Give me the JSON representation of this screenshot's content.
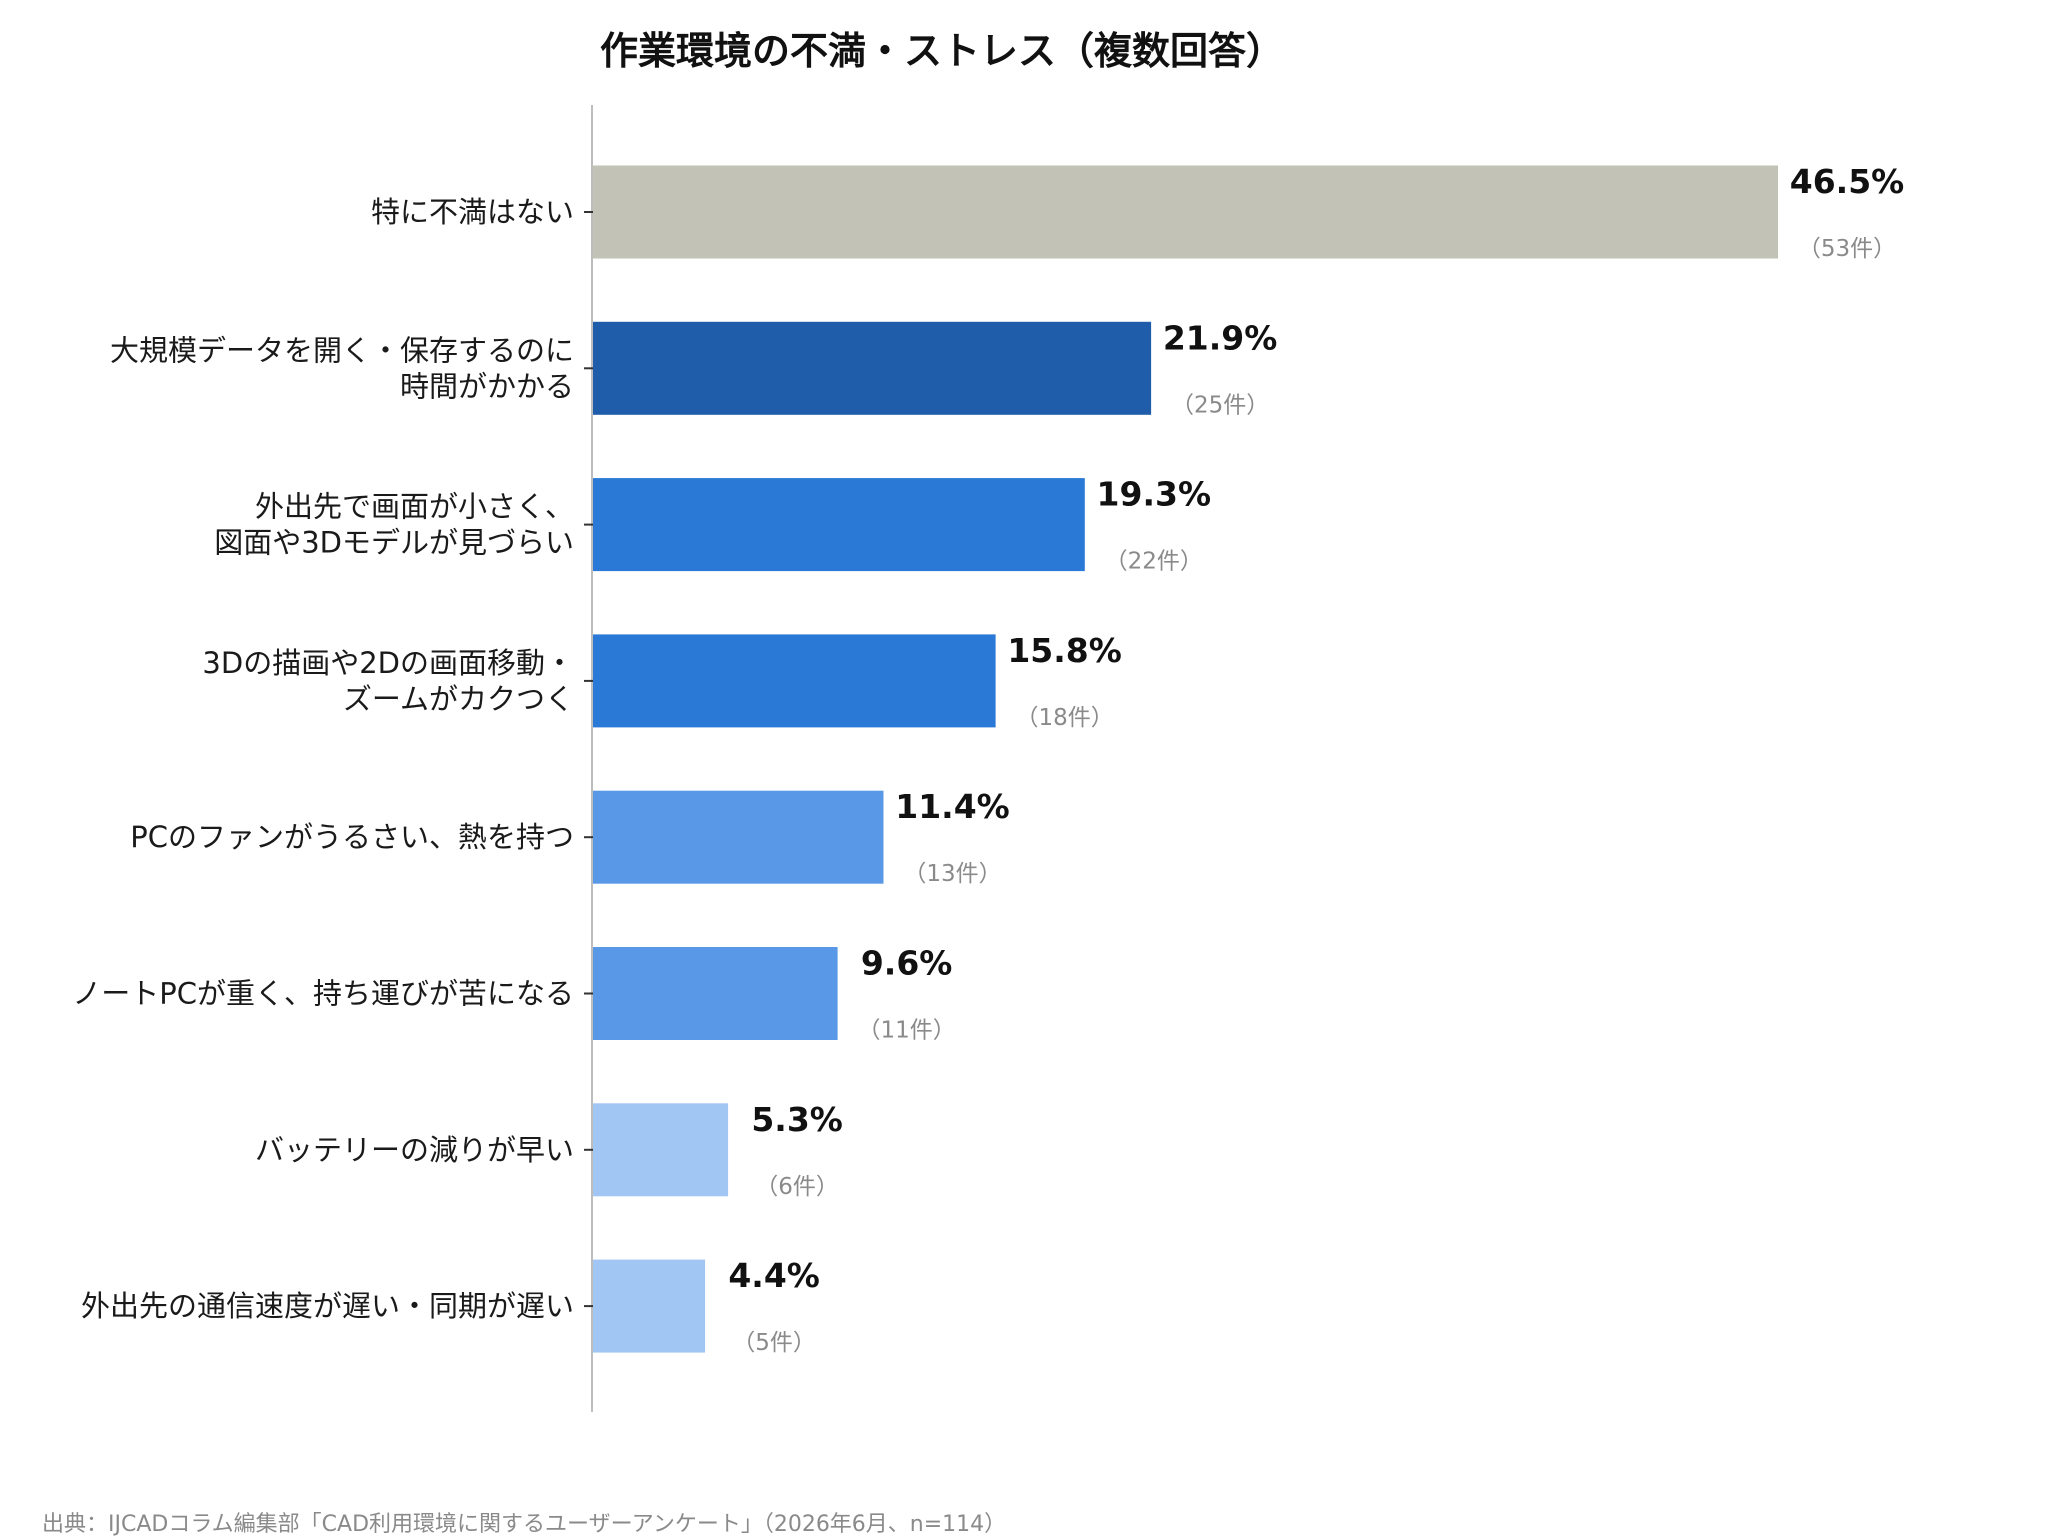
{
  "chart_data": {
    "type": "bar",
    "orientation": "horizontal",
    "title": "作業環境の不満・ストレス（複数回答）",
    "categories": [
      [
        "特に不満はない"
      ],
      [
        "大規模データを開く・保存するのに",
        "時間がかかる"
      ],
      [
        "外出先で画面が小さく、",
        "図面や3Dモデルが見づらい"
      ],
      [
        "3Dの描画や2Dの画面移動・",
        "ズームがカクつく"
      ],
      [
        "PCのファンがうるさい、熱を持つ"
      ],
      [
        "ノートPCが重く、持ち運びが苦になる"
      ],
      [
        "バッテリーの減りが早い"
      ],
      [
        "外出先の通信速度が遅い・同期が遅い"
      ]
    ],
    "values": [
      46.5,
      21.9,
      19.3,
      15.8,
      11.4,
      9.6,
      5.3,
      4.4
    ],
    "value_labels": [
      "46.5%",
      "21.9%",
      "19.3%",
      "15.8%",
      "11.4%",
      "9.6%",
      "5.3%",
      "4.4%"
    ],
    "count_labels": [
      "（53件）",
      "（25件）",
      "（22件）",
      "（18件）",
      "（13件）",
      "（11件）",
      "（6件）",
      "（5件）"
    ],
    "colors": [
      "#c2c2b6",
      "#1f5dab",
      "#2a79d6",
      "#2a79d6",
      "#5898e6",
      "#5898e6",
      "#a2c6f4",
      "#a2c6f4"
    ],
    "xlim": [
      0,
      50
    ],
    "grid": false,
    "axis_color": "#bdbdbd",
    "source": "出典：IJCADコラム編集部「CAD利用環境に関するユーザーアンケート」（2026年6月、n=114）"
  }
}
